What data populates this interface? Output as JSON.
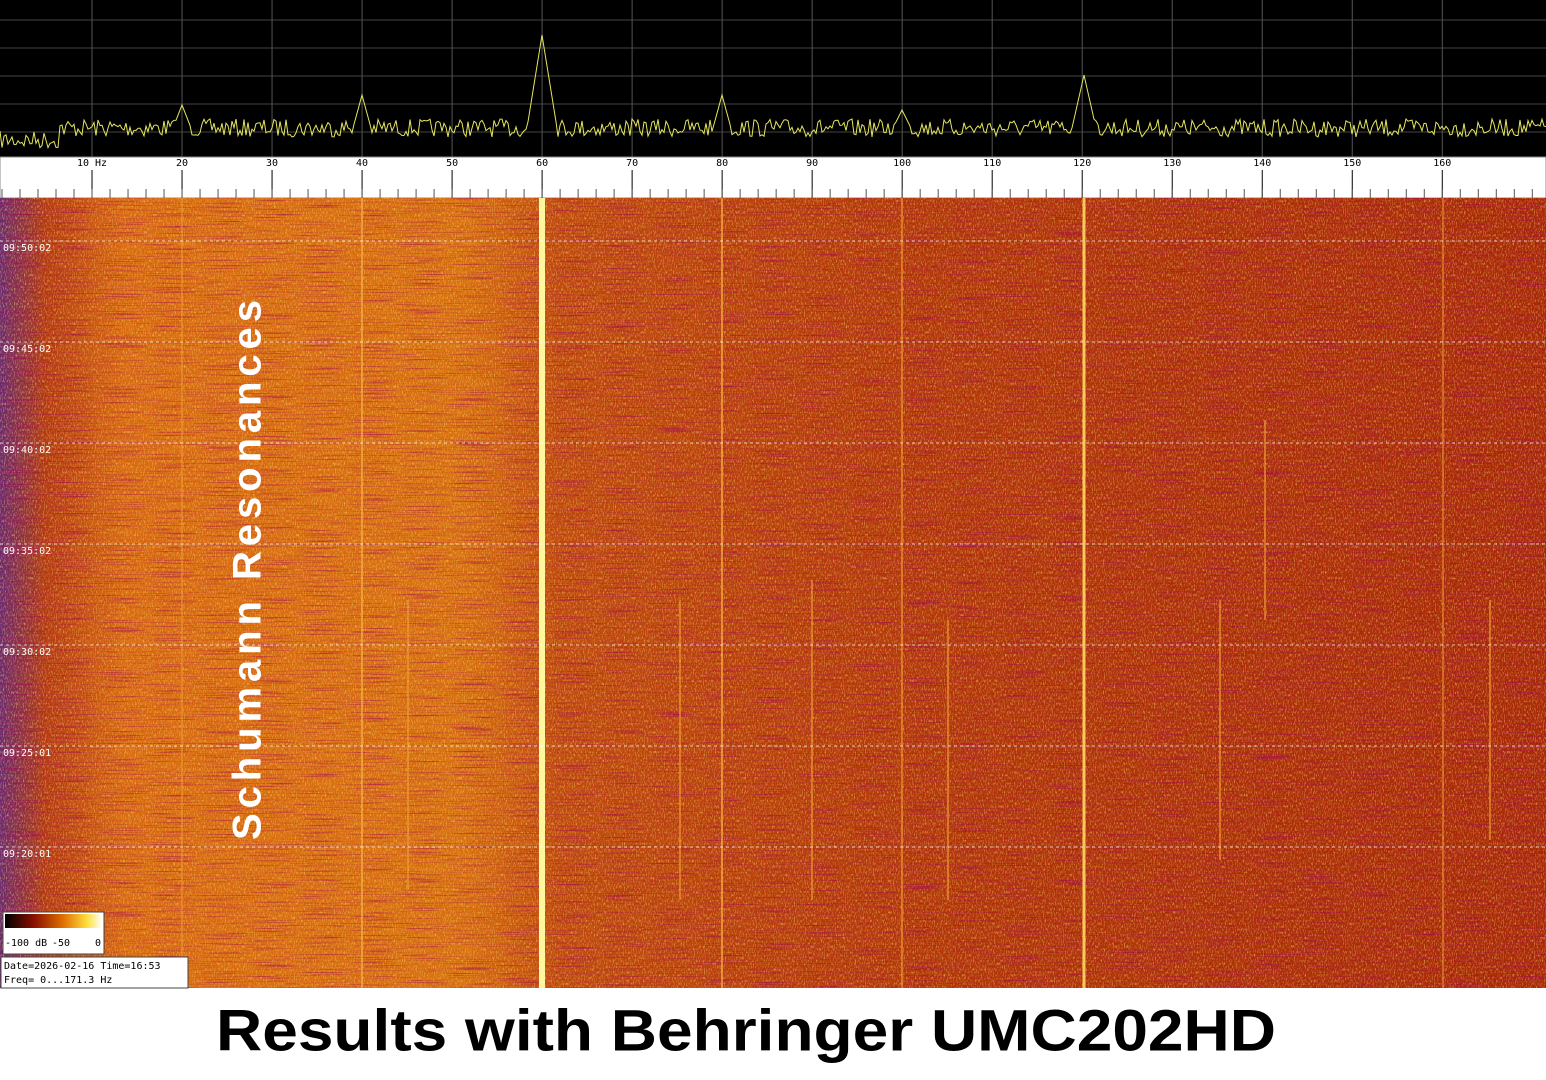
{
  "spectrum_lab": {
    "freq_axis": {
      "range": [
        0,
        171.3
      ],
      "ticks": [
        {
          "value": 10,
          "label": "10 Hz"
        },
        20,
        30,
        40,
        50,
        60,
        70,
        80,
        90,
        100,
        110,
        120,
        130,
        140,
        150,
        160
      ]
    },
    "time_labels": [
      "09:50:02",
      "09:45:02",
      "09:40:02",
      "09:35:02",
      "09:30:02",
      "09:25:01",
      "09:20:01"
    ],
    "annotation": "Schumann Resonances",
    "colorbar_labels": [
      "-100 dB",
      "-50",
      "0"
    ],
    "info": {
      "date_line": "Date=2026-02-16 Time=16:53",
      "freq_line": "Freq= 0...171.3 Hz"
    },
    "caption": "Results with Behringer UMC202HD"
  }
}
